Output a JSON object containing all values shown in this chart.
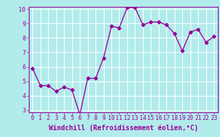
{
  "x": [
    0,
    1,
    2,
    3,
    4,
    5,
    6,
    7,
    8,
    9,
    10,
    11,
    12,
    13,
    14,
    15,
    16,
    17,
    18,
    19,
    20,
    21,
    22,
    23
  ],
  "y": [
    5.9,
    4.7,
    4.7,
    4.3,
    4.6,
    4.4,
    2.7,
    5.2,
    5.2,
    6.6,
    8.8,
    8.7,
    10.1,
    10.1,
    8.9,
    9.1,
    9.1,
    8.9,
    8.3,
    7.1,
    8.4,
    8.6,
    7.7,
    8.1
  ],
  "xlabel": "Windchill (Refroidissement éolien,°C)",
  "ylim": [
    3,
    10
  ],
  "xlim": [
    0,
    23
  ],
  "yticks": [
    3,
    4,
    5,
    6,
    7,
    8,
    9,
    10
  ],
  "xticks": [
    0,
    1,
    2,
    3,
    4,
    5,
    6,
    7,
    8,
    9,
    10,
    11,
    12,
    13,
    14,
    15,
    16,
    17,
    18,
    19,
    20,
    21,
    22,
    23
  ],
  "line_color": "#990099",
  "marker": "D",
  "marker_size": 2.5,
  "bg_color": "#b2ebeb",
  "grid_color": "#ffffff",
  "tick_label_color": "#990099",
  "spine_color": "#990099"
}
